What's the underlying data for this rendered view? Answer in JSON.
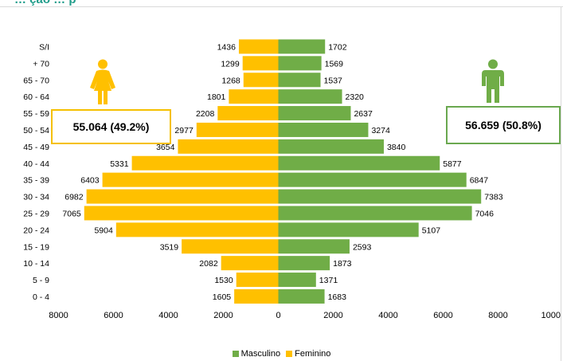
{
  "page": {
    "title_visible": "… ção … p",
    "summary_female": "55.064 (49.2%)",
    "summary_male": "56.659 (50.8%)"
  },
  "colors": {
    "male": "#70ad47",
    "female": "#ffc000",
    "title": "#1f9c8a"
  },
  "icons": {
    "female": "female-figure-icon",
    "male": "male-figure-icon"
  },
  "chart_data": {
    "type": "bar",
    "orientation": "horizontal",
    "subtype": "population-pyramid",
    "categories": [
      "S/I",
      "+ 70",
      "65 - 70",
      "60 - 64",
      "55 - 59",
      "50 - 54",
      "45 - 49",
      "40 - 44",
      "35 - 39",
      "30 - 34",
      "25 - 29",
      "20 - 24",
      "15 - 19",
      "10 - 14",
      "5 - 9",
      "0 - 4"
    ],
    "series": [
      {
        "name": "Masculino",
        "side": "right",
        "color": "#70ad47",
        "values": [
          1702,
          1569,
          1537,
          2320,
          2637,
          3274,
          3840,
          5877,
          6847,
          7383,
          7046,
          5107,
          2593,
          1873,
          1371,
          1683
        ]
      },
      {
        "name": "Feminino",
        "side": "left",
        "color": "#ffc000",
        "values": [
          1436,
          1299,
          1268,
          1801,
          2208,
          2977,
          3654,
          5331,
          6403,
          6982,
          7065,
          5904,
          3519,
          2082,
          1530,
          1605
        ]
      }
    ],
    "xticks": [
      "8000",
      "6000",
      "4000",
      "2000",
      "0",
      "2000",
      "4000",
      "6000",
      "8000",
      "1000"
    ],
    "xlim": [
      -8000,
      10000
    ],
    "legend": [
      "Masculino",
      "Feminino"
    ],
    "legend_position": "bottom",
    "grid": false
  }
}
